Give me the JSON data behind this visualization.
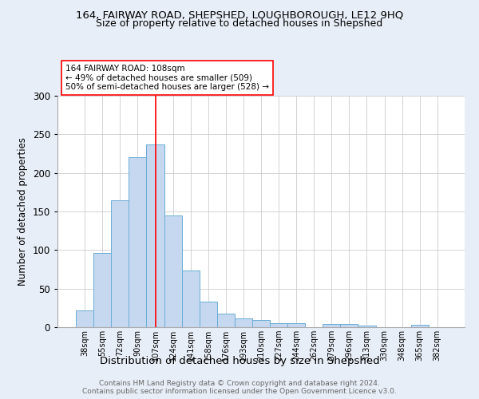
{
  "title1": "164, FAIRWAY ROAD, SHEPSHED, LOUGHBOROUGH, LE12 9HQ",
  "title2": "Size of property relative to detached houses in Shepshed",
  "xlabel": "Distribution of detached houses by size in Shepshed",
  "ylabel": "Number of detached properties",
  "categories": [
    "38sqm",
    "55sqm",
    "72sqm",
    "90sqm",
    "107sqm",
    "124sqm",
    "141sqm",
    "158sqm",
    "176sqm",
    "193sqm",
    "210sqm",
    "227sqm",
    "244sqm",
    "262sqm",
    "279sqm",
    "296sqm",
    "313sqm",
    "330sqm",
    "348sqm",
    "365sqm",
    "382sqm"
  ],
  "values": [
    22,
    96,
    165,
    220,
    237,
    145,
    73,
    33,
    18,
    11,
    9,
    5,
    5,
    0,
    4,
    4,
    2,
    0,
    0,
    3,
    0
  ],
  "bar_color": "#c5d8f0",
  "bar_edge_color": "#6aaed6",
  "marker_index": 4,
  "annotation_title": "164 FAIRWAY ROAD: 108sqm",
  "annotation_line1": "← 49% of detached houses are smaller (509)",
  "annotation_line2": "50% of semi-detached houses are larger (528) →",
  "footer1": "Contains HM Land Registry data © Crown copyright and database right 2024.",
  "footer2": "Contains public sector information licensed under the Open Government Licence v3.0.",
  "ylim": [
    0,
    300
  ],
  "yticks": [
    0,
    50,
    100,
    150,
    200,
    250,
    300
  ],
  "bg_color": "#e8eef7",
  "plot_bg_color": "#ffffff"
}
